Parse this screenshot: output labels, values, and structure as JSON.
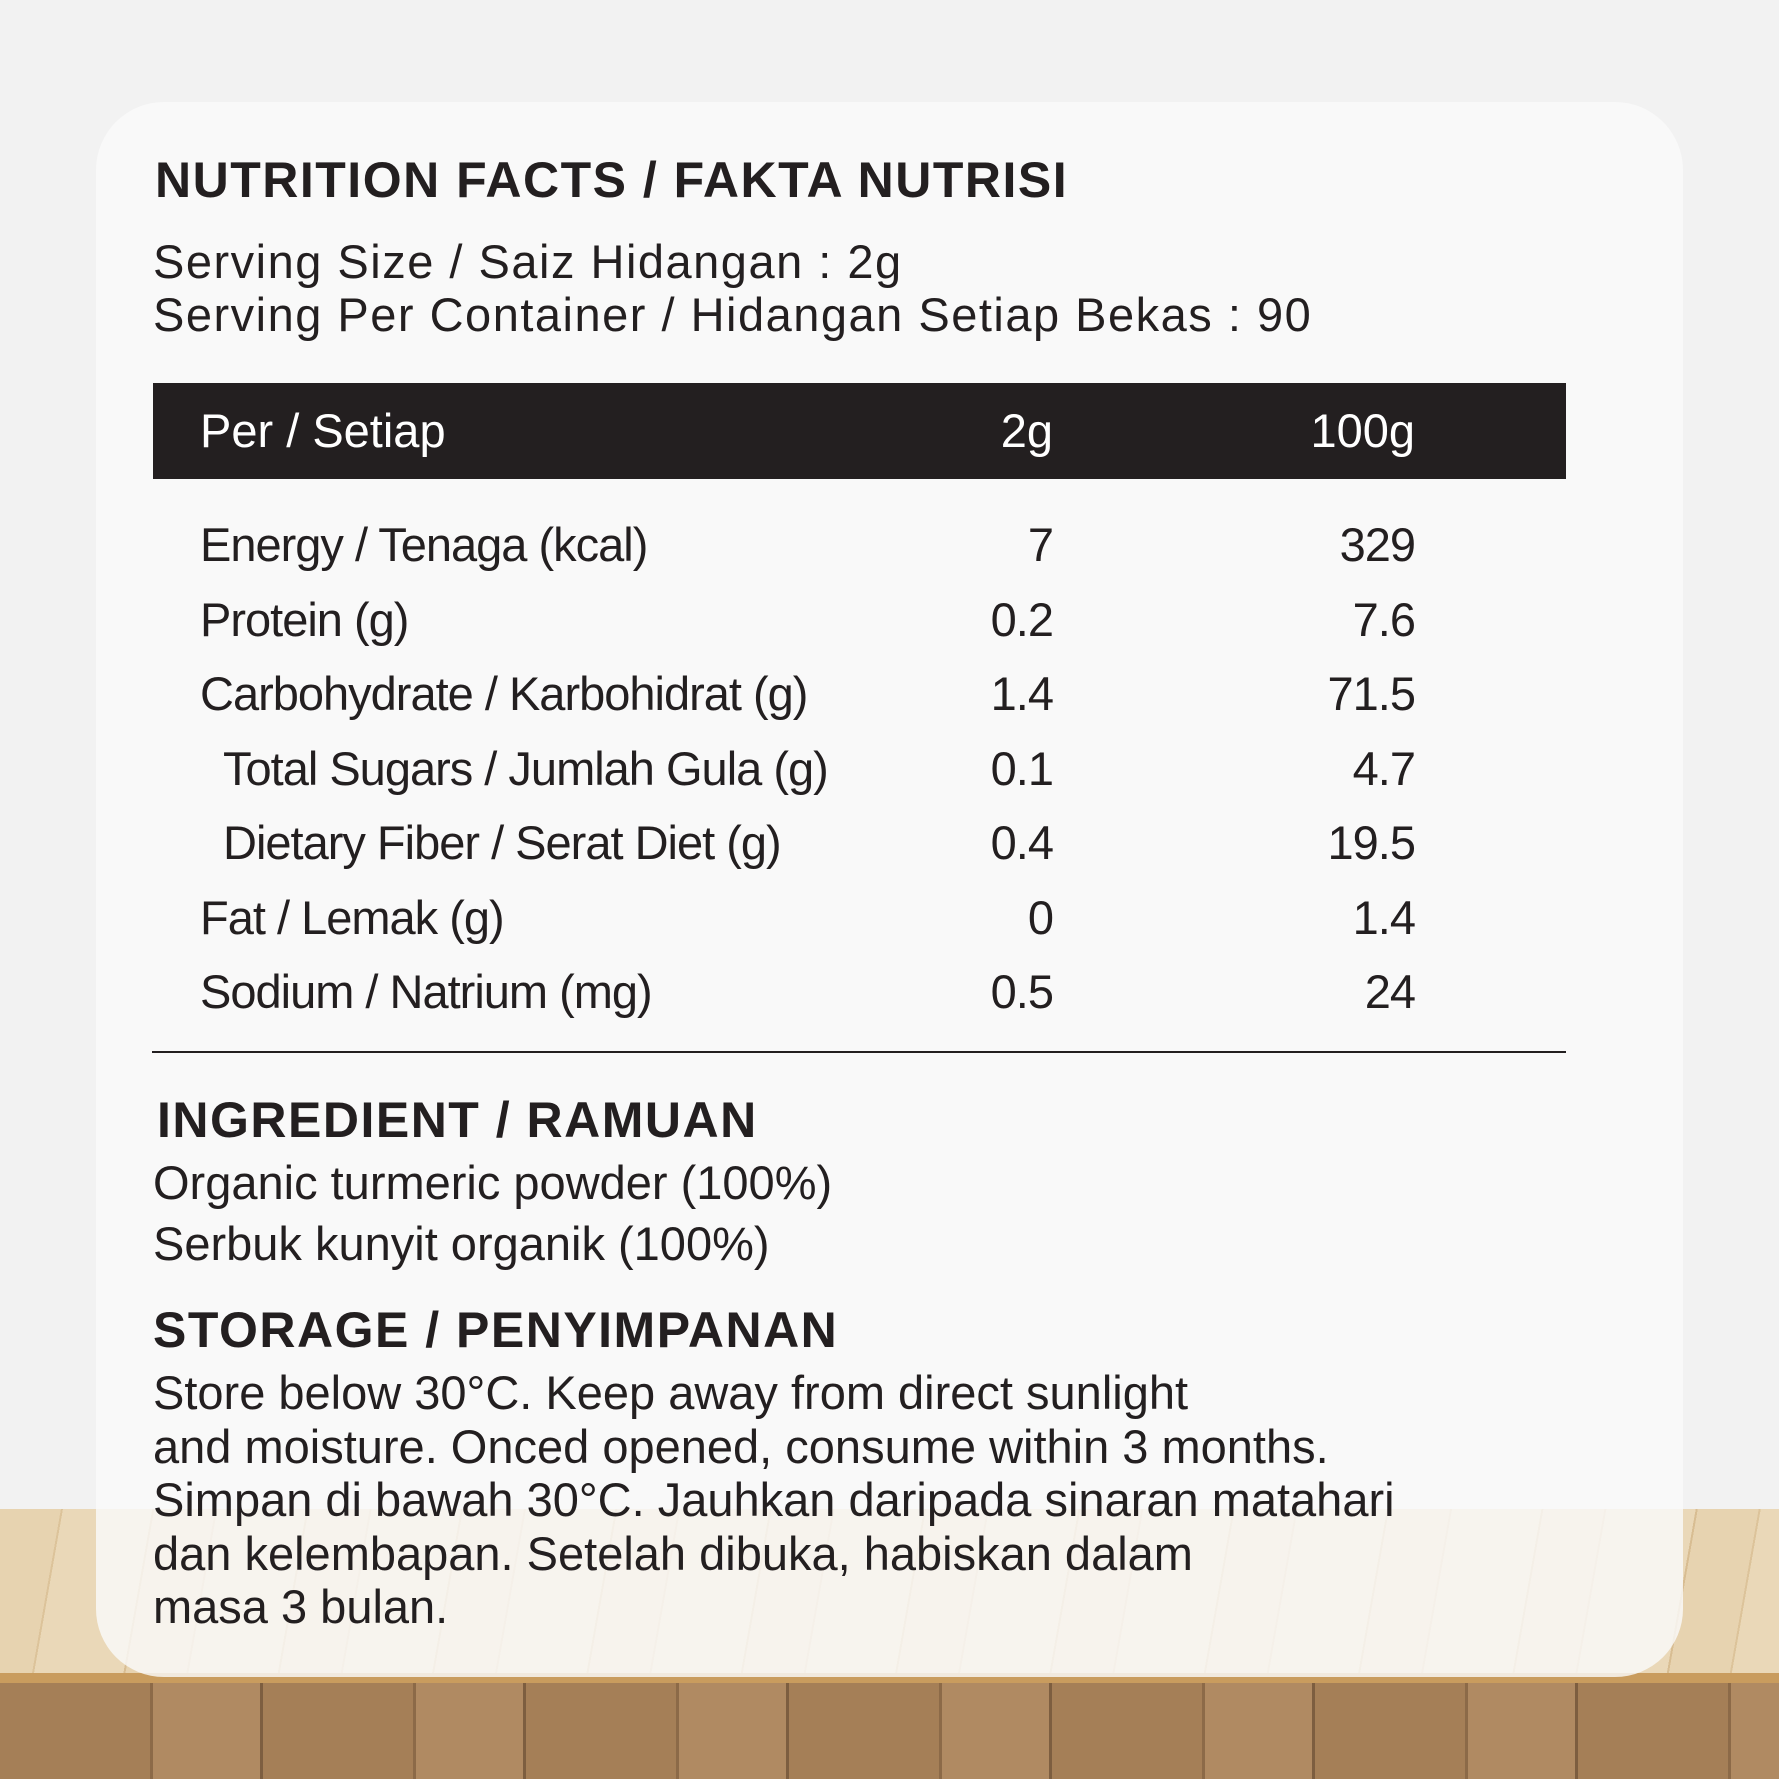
{
  "nutrition": {
    "title": "NUTRITION FACTS / FAKTA NUTRISI",
    "serving_size": "Serving Size / Saiz Hidangan : 2g",
    "servings_per_container": "Serving Per Container / Hidangan Setiap Bekas : 90",
    "table": {
      "headers": [
        "Per / Setiap",
        "2g",
        "100g"
      ],
      "rows": [
        {
          "label": "Energy / Tenaga (kcal)",
          "per_serving": "7",
          "per_100g": "329",
          "indent": false
        },
        {
          "label": "Protein (g)",
          "per_serving": "0.2",
          "per_100g": "7.6",
          "indent": false
        },
        {
          "label": "Carbohydrate / Karbohidrat (g)",
          "per_serving": "1.4",
          "per_100g": "71.5",
          "indent": false
        },
        {
          "label": "Total Sugars / Jumlah Gula (g)",
          "per_serving": "0.1",
          "per_100g": "4.7",
          "indent": true
        },
        {
          "label": "Dietary Fiber / Serat Diet (g)",
          "per_serving": "0.4",
          "per_100g": "19.5",
          "indent": true
        },
        {
          "label": "Fat / Lemak (g)",
          "per_serving": "0",
          "per_100g": "1.4",
          "indent": false
        },
        {
          "label": "Sodium / Natrium (mg)",
          "per_serving": "0.5",
          "per_100g": "24",
          "indent": false
        }
      ]
    }
  },
  "ingredient": {
    "title": "INGREDIENT / RAMUAN",
    "lines": [
      "Organic turmeric powder (100%)",
      "Serbuk kunyit organik (100%)"
    ]
  },
  "storage": {
    "title": "STORAGE / PENYIMPANAN",
    "lines": [
      "Store below 30°C. Keep away from direct sunlight",
      "and moisture. Onced opened, consume within 3 months.",
      "Simpan di bawah 30°C. Jauhkan daripada sinaran matahari",
      "dan kelembapan. Setelah dibuka, habiskan dalam",
      "masa 3 bulan."
    ]
  },
  "colors": {
    "header_bg": "#231f20",
    "text": "#231f20",
    "card": "#fafafa"
  }
}
